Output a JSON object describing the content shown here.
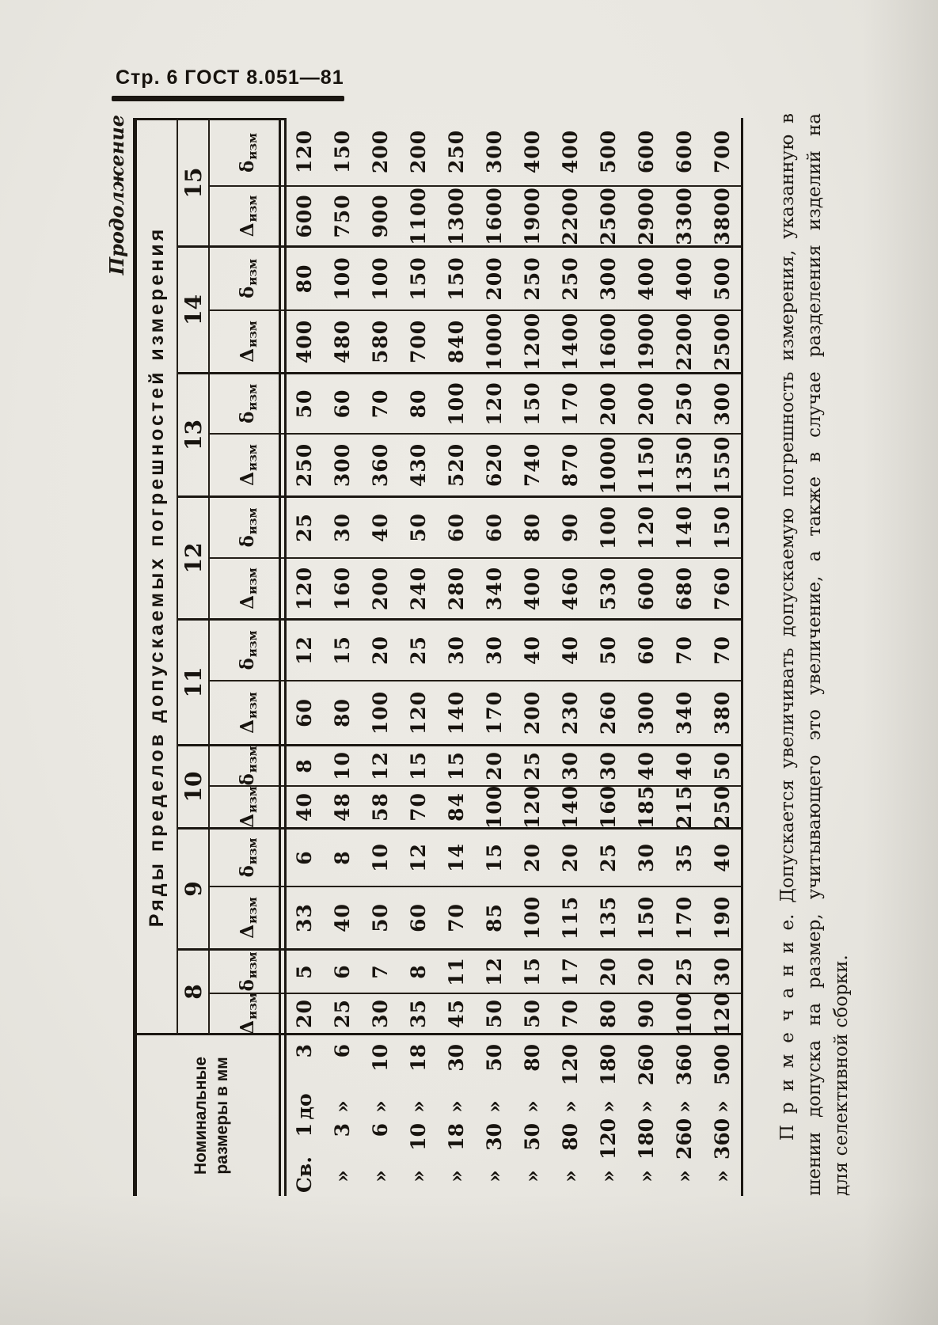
{
  "page": {
    "header_title": "Стр. 6 ГОСТ 8.051—81",
    "continuation_label": "Продолжение"
  },
  "table": {
    "column_group_title": "Ряды пределов допускаемых погрешностей измерения",
    "row_group_title": [
      "Номинальные",
      "размеры в мм"
    ],
    "delta_symbol": "Δ",
    "small_delta_symbol": "δ",
    "izm_subscript": "изм",
    "series": [
      {
        "number": "8",
        "delta": [
          "20",
          "25",
          "30",
          "35",
          "45",
          "50",
          "50",
          "70",
          "80",
          "90",
          "100",
          "120"
        ],
        "small": [
          "5",
          "6",
          "7",
          "8",
          "11",
          "12",
          "15",
          "17",
          "20",
          "20",
          "25",
          "30"
        ]
      },
      {
        "number": "9",
        "delta": [
          "33",
          "40",
          "50",
          "60",
          "70",
          "85",
          "100",
          "115",
          "135",
          "150",
          "170",
          "190"
        ],
        "small": [
          "6",
          "8",
          "10",
          "12",
          "14",
          "15",
          "20",
          "20",
          "25",
          "30",
          "35",
          "40"
        ]
      },
      {
        "number": "10",
        "delta": [
          "40",
          "48",
          "58",
          "70",
          "84",
          "100",
          "120",
          "140",
          "160",
          "185",
          "215",
          "250"
        ],
        "small": [
          "8",
          "10",
          "12",
          "15",
          "15",
          "20",
          "25",
          "30",
          "30",
          "40",
          "40",
          "50"
        ]
      },
      {
        "number": "11",
        "delta": [
          "60",
          "80",
          "100",
          "120",
          "140",
          "170",
          "200",
          "230",
          "260",
          "300",
          "340",
          "380"
        ],
        "small": [
          "12",
          "15",
          "20",
          "25",
          "30",
          "30",
          "40",
          "40",
          "50",
          "60",
          "70",
          "70"
        ]
      },
      {
        "number": "12",
        "delta": [
          "120",
          "160",
          "200",
          "240",
          "280",
          "340",
          "400",
          "460",
          "530",
          "600",
          "680",
          "760"
        ],
        "small": [
          "25",
          "30",
          "40",
          "50",
          "60",
          "60",
          "80",
          "90",
          "100",
          "120",
          "140",
          "150"
        ]
      },
      {
        "number": "13",
        "delta": [
          "250",
          "300",
          "360",
          "430",
          "520",
          "620",
          "740",
          "870",
          "1000",
          "1150",
          "1350",
          "1550"
        ],
        "small": [
          "50",
          "60",
          "70",
          "80",
          "100",
          "120",
          "150",
          "170",
          "200",
          "200",
          "250",
          "300"
        ]
      },
      {
        "number": "14",
        "delta": [
          "400",
          "480",
          "580",
          "700",
          "840",
          "1000",
          "1200",
          "1400",
          "1600",
          "1900",
          "2200",
          "2500"
        ],
        "small": [
          "80",
          "100",
          "100",
          "150",
          "150",
          "200",
          "250",
          "250",
          "300",
          "400",
          "400",
          "500"
        ]
      },
      {
        "number": "15",
        "delta": [
          "600",
          "750",
          "900",
          "1100",
          "1300",
          "1600",
          "1900",
          "2200",
          "2500",
          "2900",
          "3300",
          "3800"
        ],
        "small": [
          "120",
          "150",
          "200",
          "200",
          "250",
          "300",
          "400",
          "400",
          "500",
          "600",
          "600",
          "700"
        ]
      }
    ],
    "rows": [
      {
        "prefix": "Св.",
        "from": "1",
        "mid": "до",
        "to": "3"
      },
      {
        "prefix": "»",
        "from": "3",
        "mid": "»",
        "to": "6"
      },
      {
        "prefix": "»",
        "from": "6",
        "mid": "»",
        "to": "10"
      },
      {
        "prefix": "»",
        "from": "10",
        "mid": "»",
        "to": "18"
      },
      {
        "prefix": "»",
        "from": "18",
        "mid": "»",
        "to": "30"
      },
      {
        "prefix": "»",
        "from": "30",
        "mid": "»",
        "to": "50"
      },
      {
        "prefix": "»",
        "from": "50",
        "mid": "»",
        "to": "80"
      },
      {
        "prefix": "»",
        "from": "80",
        "mid": "»",
        "to": "120"
      },
      {
        "prefix": "»",
        "from": "120",
        "mid": "»",
        "to": "180"
      },
      {
        "prefix": "»",
        "from": "180",
        "mid": "»",
        "to": "260"
      },
      {
        "prefix": "»",
        "from": "260",
        "mid": "»",
        "to": "360"
      },
      {
        "prefix": "»",
        "from": "360",
        "mid": "»",
        "to": "500"
      }
    ]
  },
  "note": {
    "lines": [
      "П р и м е ч а н и е.  Допускается увеличивать допускаемую погрешность измерения, указанную в таблице, при умень-",
      "шении допуска на размер, учитывающего это увеличение, а также в случае разделения изделий на размерные группы",
      "для селективной сборки."
    ]
  }
}
